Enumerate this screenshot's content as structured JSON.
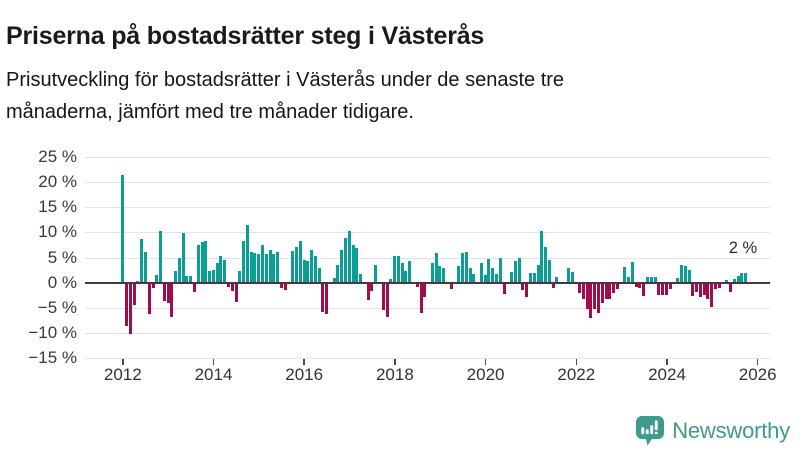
{
  "header": {
    "title": "Priserna på bostadsrätter steg i Västerås",
    "subtitle_line1": "Prisutveckling för bostadsrätter i Västerås under de senaste tre",
    "subtitle_line2": "månaderna, jämfört med tre månader tidigare."
  },
  "logo": {
    "text": "Newsworthy",
    "icon": "newsworthy-speech-bubble-bar-chart-icon",
    "color": "#3e9b8b"
  },
  "colors": {
    "positive_bar": "#0a9e94",
    "negative_bar": "#a00d4d",
    "gridline": "#e3e3e3",
    "zero_line": "#3d3d3d",
    "axis_text": "#3a3a3a",
    "title_text": "#1a1a1a"
  },
  "chart_data": {
    "type": "bar",
    "title": "Priserna på bostadsrätter steg i Västerås",
    "subtitle": "Prisutveckling för bostadsrätter i Västerås under de senaste tre månaderna, jämfört med tre månader tidigare.",
    "unit": "percent",
    "frequency": "monthly",
    "x_start": "2012-01",
    "x_end": "2025-10",
    "ylim": [
      -15,
      25
    ],
    "grid": true,
    "legend_position": "none",
    "last_value_annotation": "2 %",
    "y_ticks": [
      {
        "label": "25 %",
        "value": 25
      },
      {
        "label": "20 %",
        "value": 20
      },
      {
        "label": "15 %",
        "value": 15
      },
      {
        "label": "10 %",
        "value": 10
      },
      {
        "label": "5 %",
        "value": 5
      },
      {
        "label": "0 %",
        "value": 0
      },
      {
        "label": "−5 %",
        "value": -5
      },
      {
        "label": "−10 %",
        "value": -10
      },
      {
        "label": "−15 %",
        "value": -15
      }
    ],
    "x_ticks": [
      {
        "label": "2012",
        "year": 2012
      },
      {
        "label": "2014",
        "year": 2014
      },
      {
        "label": "2016",
        "year": 2016
      },
      {
        "label": "2018",
        "year": 2018
      },
      {
        "label": "2020",
        "year": 2020
      },
      {
        "label": "2022",
        "year": 2022
      },
      {
        "label": "2024",
        "year": 2024
      },
      {
        "label": "2026",
        "year": 2026
      }
    ],
    "values": [
      21.3,
      -8.5,
      -10.1,
      -4.4,
      0.3,
      8.6,
      6.1,
      -6.2,
      -1.0,
      1.5,
      10.3,
      -3.7,
      -4.1,
      -6.8,
      2.3,
      5.0,
      9.9,
      1.3,
      1.3,
      -1.9,
      7.4,
      8.1,
      8.3,
      2.4,
      2.6,
      4.0,
      5.3,
      4.5,
      -0.9,
      -1.6,
      -3.9,
      2.3,
      8.3,
      11.5,
      6.1,
      5.8,
      5.6,
      7.5,
      5.6,
      6.5,
      5.7,
      6.1,
      -1.0,
      -1.4,
      0.2,
      6.3,
      7.1,
      8.3,
      4.5,
      4.4,
      6.5,
      5.2,
      3.0,
      -5.8,
      -6.3,
      0.0,
      0.9,
      3.5,
      6.5,
      8.8,
      10.2,
      7.4,
      6.9,
      1.8,
      0.0,
      -3.4,
      -1.6,
      3.6,
      0.0,
      -5.5,
      -6.9,
      0.8,
      5.2,
      5.2,
      3.9,
      2.4,
      4.3,
      0.0,
      -0.8,
      -6.1,
      -2.9,
      0.0,
      3.9,
      5.9,
      3.3,
      3.0,
      0.0,
      -1.3,
      0.0,
      3.3,
      5.8,
      6.1,
      3.0,
      1.8,
      0.0,
      3.9,
      1.5,
      4.8,
      3.0,
      1.8,
      5.0,
      -2.3,
      0.0,
      2.1,
      4.4,
      4.9,
      -1.5,
      -2.8,
      1.9,
      1.9,
      3.6,
      10.3,
      7.0,
      4.6,
      -1.0,
      1.2,
      0.0,
      0.0,
      2.9,
      2.1,
      0.0,
      -2.0,
      -3.3,
      -5.2,
      -7.0,
      -5.2,
      -6.1,
      -4.0,
      -3.2,
      -3.2,
      -2.0,
      -1.2,
      0.0,
      3.1,
      1.2,
      4.2,
      -0.8,
      -1.0,
      -2.7,
      1.2,
      1.2,
      1.2,
      -2.4,
      -2.4,
      -2.4,
      -1.2,
      0.0,
      1.0,
      3.5,
      3.4,
      2.6,
      -2.7,
      -1.9,
      -2.9,
      -2.4,
      -3.2,
      -4.8,
      -1.3,
      -1.0,
      0.0,
      0.6,
      -1.9,
      0.8,
      1.4,
      2.0,
      2.0
    ]
  }
}
